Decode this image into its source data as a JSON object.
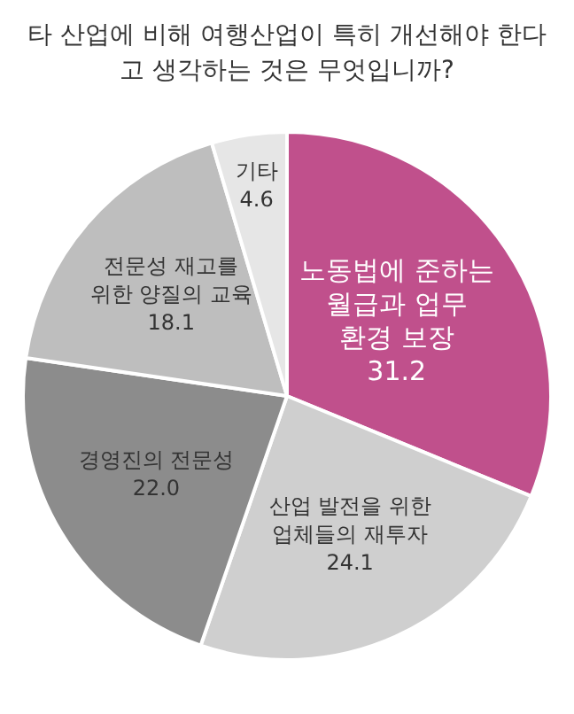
{
  "chart_data": {
    "type": "pie",
    "title": "타 산업에 비해 여행산업이 특히 개선해야 한다고 생각하는 것은 무엇입니까?",
    "categories": [
      "노동법에 준하는 월급과 업무 환경 보장",
      "산업 발전을 위한 업체들의 재투자",
      "경영진의 전문성",
      "전문성 재고를 위한 양질의 교육",
      "기타"
    ],
    "values": [
      31.2,
      24.1,
      22.0,
      18.1,
      4.6
    ],
    "colors": [
      "#c0508c",
      "#cfcfcf",
      "#8c8c8c",
      "#bebebe",
      "#e6e6e6"
    ],
    "value_labels": [
      "31.2",
      "24.1",
      "22.0",
      "18.1",
      "4.6"
    ],
    "legend": false
  }
}
